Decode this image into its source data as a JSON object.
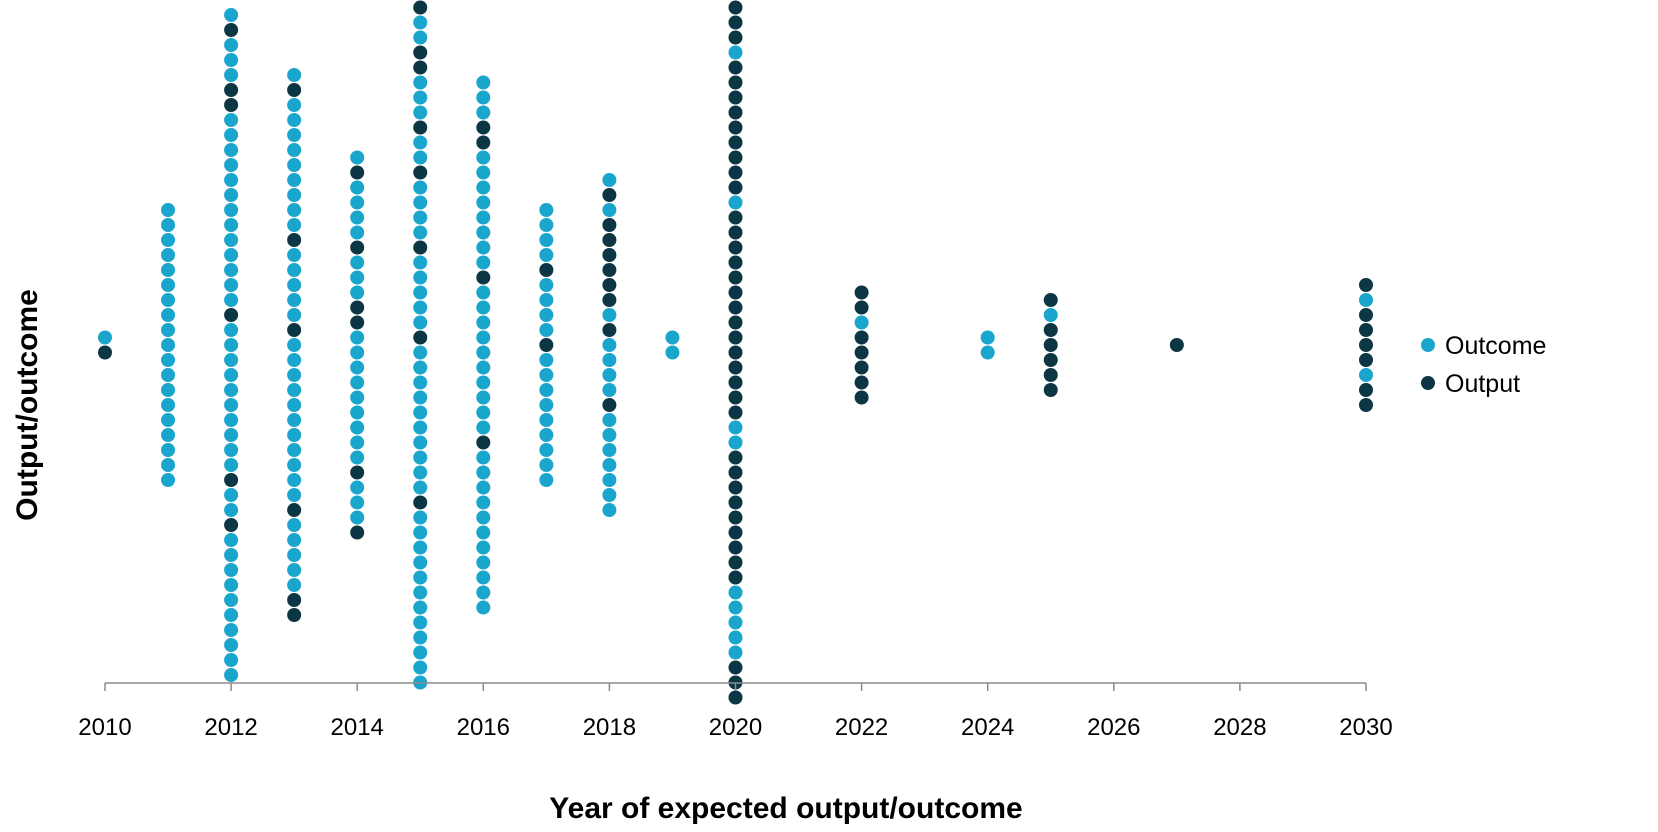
{
  "chart_data": {
    "type": "scatter",
    "title": "",
    "xlabel": "Year of expected output/outcome",
    "ylabel": "Output/outcome",
    "xlim": [
      2010,
      2030
    ],
    "x_ticks": [
      "2010",
      "2012",
      "2014",
      "2016",
      "2018",
      "2020",
      "2022",
      "2024",
      "2026",
      "2028",
      "2030"
    ],
    "grid": false,
    "legend_position": "right",
    "colors": {
      "Outcome": "#1aa6cc",
      "Output": "#0d3644"
    },
    "series": [
      {
        "name": "Outcome"
      },
      {
        "name": "Output"
      }
    ],
    "columns": [
      {
        "year": 2010,
        "dots": "AB"
      },
      {
        "year": 2011,
        "dots": "AAAAAAAAAAAAAAAAAAA"
      },
      {
        "year": 2012,
        "dots": "ABAAABBAAAAAAAAAAAAABAAAAAAAAAABAABAAAAAAAAAA"
      },
      {
        "year": 2013,
        "dots": "ABAAAAAAAAABAAAAABAAAAAAAAAAABAAAAABB"
      },
      {
        "year": 2014,
        "dots": "ABAAAABAAABBAAAAAAAAABAAAB"
      },
      {
        "year": 2015,
        "dots": "BAABBAAABAABAAAABAAAAABAAAAAAAAAABAAAAAAAAAAAA"
      },
      {
        "year": 2016,
        "dots": "AAABBAAAAAAAABAAAAAAAAAABAAAAAAAAAAA"
      },
      {
        "year": 2017,
        "dots": "AAAABAAAABAAAAAAAAA"
      },
      {
        "year": 2018,
        "dots": "ABABBBBBBABAAAABAAAAAAA"
      },
      {
        "year": 2019,
        "dots": "AA"
      },
      {
        "year": 2020,
        "dots": "ABBBABBBBBBBBBABBBBBBBBBBBBBBAABBBBBBBBBAAAAABBB"
      },
      {
        "year": 2022,
        "dots": "BBABBBBB"
      },
      {
        "year": 2024,
        "dots": "AA"
      },
      {
        "year": 2025,
        "dots": "BABBBBB"
      },
      {
        "year": 2027,
        "dots": "B"
      },
      {
        "year": 2030,
        "dots": "BABBBBABB"
      }
    ]
  }
}
